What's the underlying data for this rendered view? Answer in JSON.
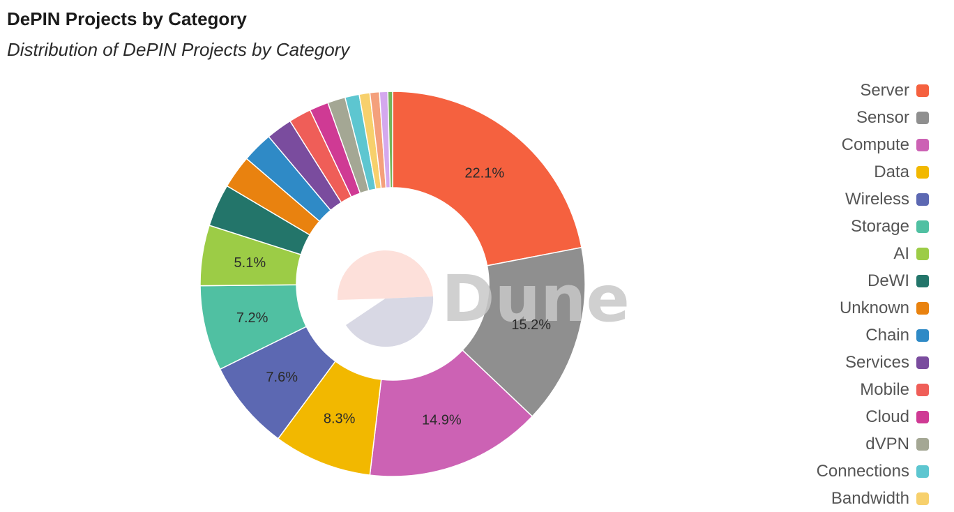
{
  "header": {
    "title": "DePIN Projects by Category",
    "subtitle": "Distribution of DePIN Projects by Category"
  },
  "watermark": "Dune",
  "chart_data": {
    "type": "pie",
    "donut": true,
    "legend_position": "right",
    "slices": [
      {
        "label": "Server",
        "value": 22.1,
        "color": "#f5613f",
        "show_label": true
      },
      {
        "label": "Sensor",
        "value": 15.2,
        "color": "#8f8f8f",
        "show_label": true
      },
      {
        "label": "Compute",
        "value": 14.9,
        "color": "#cc62b4",
        "show_label": true
      },
      {
        "label": "Data",
        "value": 8.3,
        "color": "#f2b800",
        "show_label": true
      },
      {
        "label": "Wireless",
        "value": 7.6,
        "color": "#5c68b2",
        "show_label": true
      },
      {
        "label": "Storage",
        "value": 7.2,
        "color": "#50c0a2",
        "show_label": true
      },
      {
        "label": "AI",
        "value": 5.1,
        "color": "#9ccc46",
        "show_label": true
      },
      {
        "label": "DeWI",
        "value": 3.6,
        "color": "#23756a",
        "show_label": false
      },
      {
        "label": "Unknown",
        "value": 2.8,
        "color": "#e9820f",
        "show_label": false
      },
      {
        "label": "Chain",
        "value": 2.6,
        "color": "#2f8ac6",
        "show_label": false
      },
      {
        "label": "Services",
        "value": 2.2,
        "color": "#7a4c9e",
        "show_label": false
      },
      {
        "label": "Mobile",
        "value": 1.9,
        "color": "#ef5e58",
        "show_label": false
      },
      {
        "label": "Cloud",
        "value": 1.6,
        "color": "#cf3a94",
        "show_label": false
      },
      {
        "label": "dVPN",
        "value": 1.5,
        "color": "#a4a794",
        "show_label": false
      },
      {
        "label": "Connections",
        "value": 1.2,
        "color": "#5dc6d0",
        "show_label": false
      },
      {
        "label": "Bandwidth",
        "value": 0.9,
        "color": "#f7d06c",
        "show_label": false
      },
      {
        "label": "",
        "value": 0.8,
        "color": "#f4a07c",
        "show_label": false,
        "in_legend": false
      },
      {
        "label": "",
        "value": 0.7,
        "color": "#d4a8ee",
        "show_label": false,
        "in_legend": false
      },
      {
        "label": "",
        "value": 0.4,
        "color": "#74b45a",
        "show_label": false,
        "in_legend": false
      }
    ]
  }
}
